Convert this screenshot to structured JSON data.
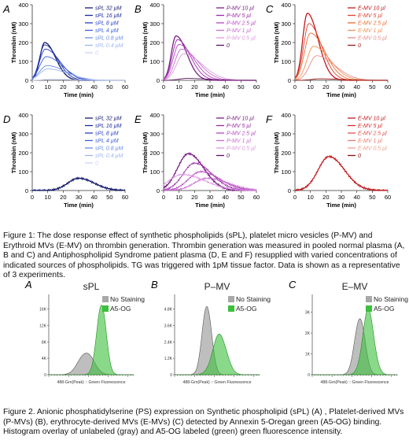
{
  "figure1": {
    "xlabel": "Time (min)",
    "ylabel": "Thrombin (nM)",
    "caption": "Figure 1: The dose response effect of synthetic phospholipids (sPL), platelet micro vesicles (P-MV)  and Erythroid MVs (E-MV) on thrombin generation. Thrombin generation was measured in pooled normal plasma (A, B and C) and Antiphospholipid Syndrome  patient plasma (D, E and F) resupplied with varied concentrations of indicated sources of phospholipids. TG was triggered with 1pM tissue factor. Data is shown as a representative of 3 experiments.",
    "panels": [
      {
        "letter": "A",
        "legend": [
          "sPL 32 µM",
          "sPL 16 µM",
          "sPL 8 µM",
          "sPL 4 µM",
          "sPL 0.8 µM",
          "sPL 0.4 µM",
          "0"
        ],
        "colors": [
          "#141a6e",
          "#1c2a9e",
          "#2a3fc4",
          "#3d5fd8",
          "#6a8ae6",
          "#9fb6f0",
          "#c8d6f6"
        ]
      },
      {
        "letter": "B",
        "legend": [
          "P-MV 10 µl",
          "P-MV 5 µl",
          "P-MV 2.5 µl",
          "P-MV 1 µl",
          "P-MV 0.5 µl",
          "0"
        ],
        "colors": [
          "#7a1e86",
          "#9a2aa6",
          "#b548c0",
          "#c96cd2",
          "#dd98e2",
          "#5a1060"
        ]
      },
      {
        "letter": "C",
        "legend": [
          "E-MV 10 µl",
          "E-MV 5 µl",
          "E-MV 2.5 µl",
          "E-MV 1 µl",
          "E-MV 0.5 µl",
          "0"
        ],
        "colors": [
          "#c0181c",
          "#e0402a",
          "#ee6a30",
          "#f29050",
          "#e88b8b",
          "#9a1a1a"
        ]
      },
      {
        "letter": "D",
        "legend": [
          "sPL 32 µM",
          "sPL 16 µM",
          "sPL 8 µM",
          "sPL 4 µM",
          "sPL 0.8 µM",
          "sPL 0.4 µM",
          "0"
        ],
        "colors": [
          "#141a6e",
          "#1c2a9e",
          "#2a3fc4",
          "#3d5fd8",
          "#6a8ae6",
          "#9fb6f0",
          "#c8d6f6"
        ]
      },
      {
        "letter": "E",
        "legend": [
          "P-MV 10 µl",
          "P-MV 5 µl",
          "P-MV 2.5 µl",
          "P-MV 1 µl",
          "P-MV 0.5 µl",
          "0"
        ],
        "colors": [
          "#7a1e86",
          "#9a2aa6",
          "#b548c0",
          "#c96cd2",
          "#dd98e2",
          "#5a1060"
        ]
      },
      {
        "letter": "F",
        "legend": [
          "E-MV 10 µl",
          "E-MV 5 µl",
          "E-MV 2.5 µl",
          "E-MV 1 µl",
          "E-MV 0.5 µl",
          "0"
        ],
        "colors": [
          "#c0181c",
          "#d82c2c",
          "#e65050",
          "#ee7a6a",
          "#f0a090",
          "#8a1010"
        ]
      }
    ]
  },
  "figure2": {
    "xlabel": "488-Grn(Peak) :: Green Fluorescence",
    "legend": [
      "No Staining",
      "A5-OG"
    ],
    "colors": {
      "unstained": "#a8a8a8",
      "stained": "#3cbf3c"
    },
    "caption": "Figure 2. Anionic phosphatidylserine (PS) expression on Synthetic phospholipid (sPL) (A) , Platelet-derived MVs (P-MVs) (B), erythrocyte-derived MVs (E-MVs) (C) detected by  Annexin 5-Oregan green (A5-OG) binding.  Histogram overlay of unlabeled (gray) and A5-OG labeled (green) green fluorescence intensity.",
    "panels": [
      {
        "letter": "A",
        "title": "sPL",
        "yticks": [
          "0",
          "4K",
          "8K",
          "12K",
          "16K"
        ]
      },
      {
        "letter": "B",
        "title": "P–MV",
        "yticks": [
          "0",
          "1.2K",
          "2.4K",
          "3.6K",
          "4.8K"
        ]
      },
      {
        "letter": "C",
        "title": "E–MV",
        "yticks": [
          "0",
          "1K",
          "2K",
          "3K"
        ]
      }
    ]
  },
  "chart_data": [
    {
      "panel": "A",
      "type": "line",
      "xlabel": "Time (min)",
      "ylabel": "Thrombin (nM)",
      "xlim": [
        0,
        60
      ],
      "ylim": [
        0,
        400
      ],
      "xticks": [
        0,
        10,
        20,
        30,
        40,
        50,
        60
      ],
      "yticks": [
        0,
        100,
        200,
        300,
        400
      ],
      "series": [
        {
          "name": "sPL 32 µM",
          "peak_x": 8,
          "peak_y": 200
        },
        {
          "name": "sPL 16 µM",
          "peak_x": 8,
          "peak_y": 188
        },
        {
          "name": "sPL 8 µM",
          "peak_x": 8.5,
          "peak_y": 165
        },
        {
          "name": "sPL 4 µM",
          "peak_x": 9,
          "peak_y": 125
        },
        {
          "name": "sPL 0.8 µM",
          "peak_x": 9.5,
          "peak_y": 78
        },
        {
          "name": "sPL 0.4 µM",
          "peak_x": 10,
          "peak_y": 60
        },
        {
          "name": "0",
          "peak_x": 12,
          "peak_y": 5
        }
      ]
    },
    {
      "panel": "B",
      "type": "line",
      "xlabel": "Time (min)",
      "ylabel": "Thrombin (nM)",
      "xlim": [
        0,
        60
      ],
      "ylim": [
        0,
        400
      ],
      "xticks": [
        0,
        10,
        20,
        30,
        40,
        50,
        60
      ],
      "yticks": [
        0,
        100,
        200,
        300,
        400
      ],
      "series": [
        {
          "name": "P-MV 10 µl",
          "peak_x": 8,
          "peak_y": 235
        },
        {
          "name": "P-MV 5 µl",
          "peak_x": 9,
          "peak_y": 215
        },
        {
          "name": "P-MV 2.5 µl",
          "peak_x": 10,
          "peak_y": 190
        },
        {
          "name": "P-MV 1 µl",
          "peak_x": 11.5,
          "peak_y": 165
        },
        {
          "name": "P-MV 0.5 µl",
          "peak_x": 13,
          "peak_y": 140
        },
        {
          "name": "0",
          "peak_x": 15,
          "peak_y": 10
        }
      ]
    },
    {
      "panel": "C",
      "type": "line",
      "xlabel": "Time (min)",
      "ylabel": "Thrombin (nM)",
      "xlim": [
        0,
        60
      ],
      "ylim": [
        0,
        400
      ],
      "xticks": [
        0,
        10,
        20,
        30,
        40,
        50,
        60
      ],
      "yticks": [
        0,
        100,
        200,
        300,
        400
      ],
      "series": [
        {
          "name": "E-MV 10 µl",
          "peak_x": 8,
          "peak_y": 355
        },
        {
          "name": "E-MV 5 µl",
          "peak_x": 9,
          "peak_y": 300
        },
        {
          "name": "E-MV 2.5 µl",
          "peak_x": 10,
          "peak_y": 250
        },
        {
          "name": "E-MV 1 µl",
          "peak_x": 12,
          "peak_y": 180
        },
        {
          "name": "E-MV 0.5 µl",
          "peak_x": 14,
          "peak_y": 130
        },
        {
          "name": "0",
          "peak_x": 16,
          "peak_y": 8
        }
      ]
    },
    {
      "panel": "D",
      "type": "line",
      "xlabel": "Time (min)",
      "ylabel": "Thrombin (nM)",
      "xlim": [
        0,
        60
      ],
      "ylim": [
        0,
        400
      ],
      "xticks": [
        0,
        10,
        20,
        30,
        40,
        50,
        60
      ],
      "yticks": [
        0,
        100,
        200,
        300,
        400
      ],
      "series": [
        {
          "name": "sPL 32 µM",
          "peak_x": 30,
          "peak_y": 65
        }
      ]
    },
    {
      "panel": "E",
      "type": "line",
      "xlabel": "Time (min)",
      "ylabel": "Thrombin (nM)",
      "xlim": [
        0,
        60
      ],
      "ylim": [
        0,
        400
      ],
      "xticks": [
        0,
        10,
        20,
        30,
        40,
        50,
        60
      ],
      "yticks": [
        0,
        100,
        200,
        300,
        400
      ],
      "series": [
        {
          "name": "P-MV 10 µl",
          "peak_x": 16,
          "peak_y": 195
        },
        {
          "name": "P-MV 5 µl",
          "peak_x": 20,
          "peak_y": 145
        },
        {
          "name": "P-MV 2.5 µl",
          "peak_x": 24,
          "peak_y": 100
        },
        {
          "name": "P-MV 1 µl",
          "peak_x": 28,
          "peak_y": 65
        },
        {
          "name": "P-MV 0.5 µl",
          "peak_x": 12,
          "peak_y": 85
        }
      ]
    },
    {
      "panel": "F",
      "type": "line",
      "xlabel": "Time (min)",
      "ylabel": "Thrombin (nM)",
      "xlim": [
        0,
        60
      ],
      "ylim": [
        0,
        400
      ],
      "xticks": [
        0,
        10,
        20,
        30,
        40,
        50,
        60
      ],
      "yticks": [
        0,
        100,
        200,
        300,
        400
      ],
      "series": [
        {
          "name": "E-MV 10 µl",
          "peak_x": 22,
          "peak_y": 180
        }
      ]
    }
  ]
}
